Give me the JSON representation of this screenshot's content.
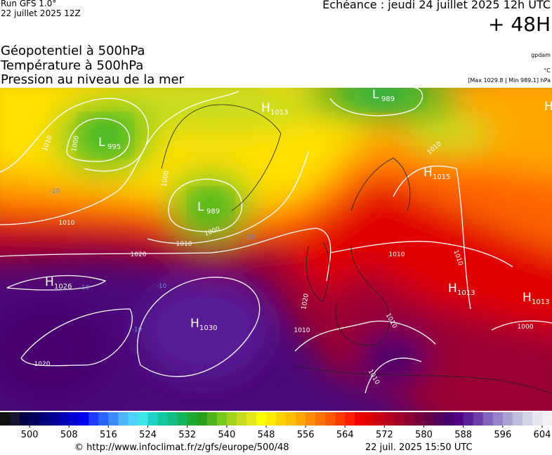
{
  "header": {
    "run": "Run GFS 1.0°",
    "run_date": "22 juillet 2025 12Z",
    "valid": "Echéance : jeudi 24 juillet 2025 12h UTC",
    "lead": "+ 48H"
  },
  "fields": [
    "Géopotentiel à 500hPa",
    "Température à 500hPa",
    "Pression au niveau de la mer"
  ],
  "units": {
    "geopotential": "gpdam",
    "temperature": "°C",
    "pressure": "[Max 1029.8 | Min 989.1] hPa"
  },
  "map": {
    "centers": [
      {
        "letter": "L",
        "value": 995
      },
      {
        "letter": "H",
        "value": 1013
      },
      {
        "letter": "L",
        "value": 989
      },
      {
        "letter": "H"
      },
      {
        "letter": "L",
        "value": 989
      },
      {
        "letter": "H",
        "value": 1015
      },
      {
        "letter": "H",
        "value": 1026
      },
      {
        "letter": "H",
        "value": 1030
      },
      {
        "letter": "H",
        "value": 1013
      },
      {
        "letter": "H",
        "value": 1013
      }
    ],
    "isobar_labels": [
      1010,
      1000,
      1010,
      1020,
      1010,
      1000,
      1000,
      1010,
      1010,
      1020,
      1010,
      1010,
      1010,
      1020,
      1000,
      1010
    ],
    "temperature_labels": [
      "-10",
      "-10",
      "-10",
      "-10",
      "-10"
    ]
  },
  "colorbar": {
    "range": [
      494,
      606
    ],
    "ticks": [
      500,
      508,
      516,
      524,
      532,
      540,
      548,
      556,
      564,
      572,
      580,
      588,
      596,
      604
    ],
    "colors": [
      "#111111",
      "#14142e",
      "#000046",
      "#00005a",
      "#000078",
      "#000096",
      "#0000b4",
      "#0000d2",
      "#0000f0",
      "#1e3cff",
      "#2864ff",
      "#3c8cff",
      "#50b4ff",
      "#50d2ff",
      "#3ce6e6",
      "#1ed2c8",
      "#14c8a0",
      "#14be82",
      "#14b45a",
      "#1eaa32",
      "#28a01e",
      "#50b41e",
      "#78c81e",
      "#a0d21e",
      "#c8dc1e",
      "#e6e61e",
      "#ffff00",
      "#ffeb00",
      "#ffd200",
      "#ffbe00",
      "#ffa500",
      "#ff8c00",
      "#ff7300",
      "#ff5a00",
      "#ff3c00",
      "#ff1e00",
      "#f00000",
      "#dc0000",
      "#c80014",
      "#b4001e",
      "#a00028",
      "#8c0032",
      "#78003c",
      "#640046",
      "#50005a",
      "#46006e",
      "#500082",
      "#5a1e96",
      "#6e3caa",
      "#8264be",
      "#9682c8",
      "#aaa0d2",
      "#bebedc",
      "#d2d2e6",
      "#e6e6f0",
      "#f0f0f5"
    ]
  },
  "footer": {
    "source": "© http://www.infoclimat.fr/z/gfs/europe/500/48",
    "generated": "22 juil. 2025 15:50 UTC"
  }
}
